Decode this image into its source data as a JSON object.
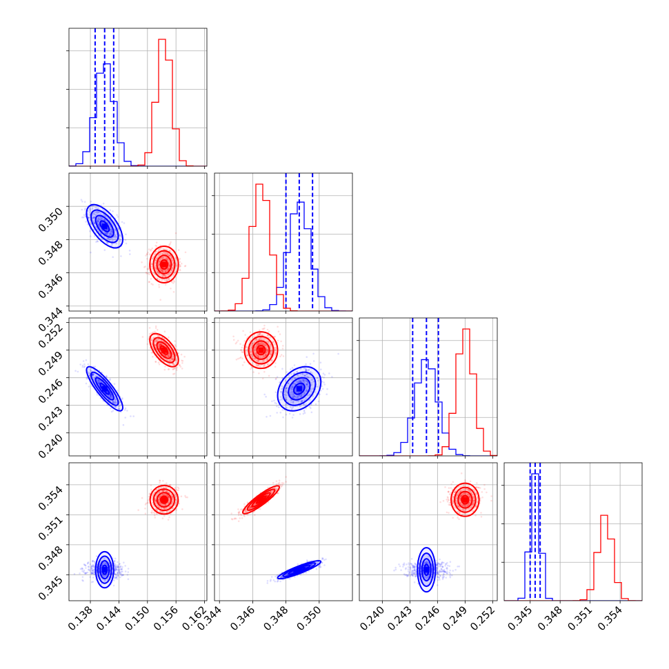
{
  "colors": {
    "series_a": "#0000ff",
    "series_b": "#ff0000"
  },
  "chart_data": {
    "type": "corner",
    "title": "",
    "parameters": [
      {
        "name": "",
        "range": [
          0.1335,
          0.1625
        ],
        "ticks": [
          "0.138",
          "0.144",
          "0.150",
          "0.156",
          "0.162"
        ]
      },
      {
        "name": "",
        "range": [
          0.3437,
          0.352
        ],
        "ticks": [
          "0.344",
          "0.346",
          "0.348",
          "0.350"
        ]
      },
      {
        "name": "",
        "range": [
          0.2375,
          0.2525
        ],
        "ticks": [
          "0.240",
          "0.243",
          "0.246",
          "0.249",
          "0.252"
        ]
      },
      {
        "name": "",
        "range": [
          0.3424,
          0.3562
        ],
        "ticks": [
          "0.345",
          "0.348",
          "0.351",
          "0.354"
        ]
      }
    ],
    "series": [
      {
        "color": "#0000ff",
        "mean": [
          0.141,
          0.3488,
          0.2448,
          0.3455
        ],
        "sd": [
          0.0019,
          0.00065,
          0.0012,
          0.00045
        ],
        "quantiles": [
          [
            0.139,
            0.141,
            0.1429
          ],
          [
            0.348,
            0.3488,
            0.3496
          ],
          [
            0.2433,
            0.2448,
            0.2461
          ],
          [
            0.345,
            0.3455,
            0.346
          ]
        ],
        "corr": [
          [
            1,
            -0.6,
            -0.85,
            0.0
          ],
          [
            -0.6,
            1,
            0.3,
            0.9
          ],
          [
            -0.85,
            0.3,
            1,
            0.0
          ],
          [
            0.0,
            0.9,
            0.0,
            1
          ]
        ]
      },
      {
        "color": "#ff0000",
        "mean": [
          0.1535,
          0.3465,
          0.249,
          0.3525
        ],
        "sd": [
          0.0015,
          0.00055,
          0.0009,
          0.0007
        ],
        "quantiles": [],
        "corr": [
          [
            1,
            0.0,
            -0.6,
            0.0
          ],
          [
            0.0,
            1,
            0.0,
            0.9
          ],
          [
            -0.6,
            0.0,
            1,
            0.0
          ],
          [
            0.0,
            0.9,
            0.0,
            1
          ]
        ]
      }
    ]
  }
}
